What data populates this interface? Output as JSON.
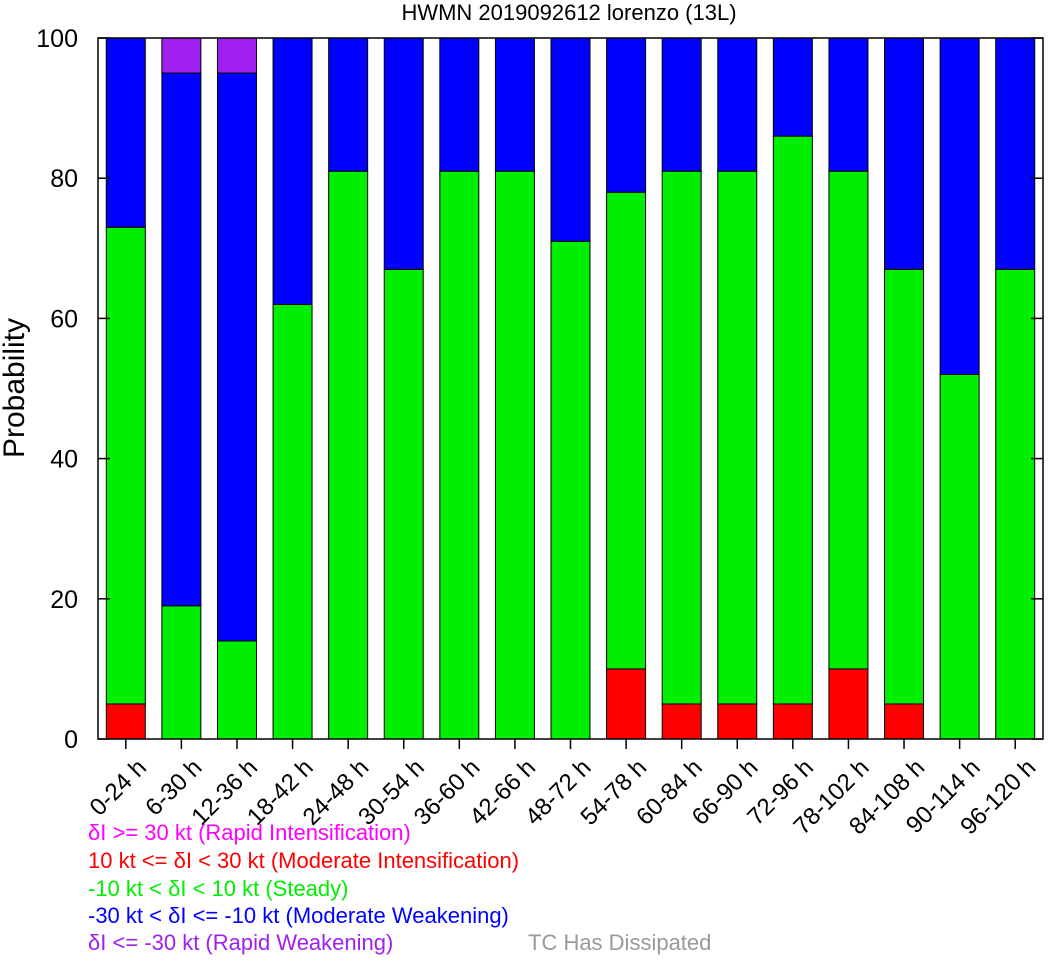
{
  "chart_data": {
    "type": "bar",
    "stacked": true,
    "title": "HWMN 2019092612 lorenzo (13L)",
    "ylabel": "Probability",
    "xlabel": "",
    "ylim": [
      0,
      100
    ],
    "yticks": [
      0,
      20,
      40,
      60,
      80,
      100
    ],
    "grid": false,
    "categories": [
      "0-24 h",
      "6-30 h",
      "12-36 h",
      "18-42 h",
      "24-48 h",
      "30-54 h",
      "36-60 h",
      "42-66 h",
      "48-72 h",
      "54-78 h",
      "60-84 h",
      "66-90 h",
      "72-96 h",
      "78-102 h",
      "84-108 h",
      "90-114 h",
      "96-120 h"
    ],
    "series": [
      {
        "key": "moderate_intensification",
        "color": "#ff0000",
        "values": [
          5,
          0,
          0,
          0,
          0,
          0,
          0,
          0,
          0,
          10,
          5,
          5,
          5,
          10,
          5,
          0,
          0
        ]
      },
      {
        "key": "steady",
        "color": "#00ee00",
        "values": [
          68,
          19,
          14,
          62,
          81,
          67,
          81,
          81,
          71,
          68,
          76,
          76,
          81,
          71,
          62,
          52,
          67
        ]
      },
      {
        "key": "moderate_weakening",
        "color": "#0000ff",
        "values": [
          27,
          76,
          81,
          38,
          19,
          33,
          19,
          19,
          29,
          22,
          19,
          19,
          14,
          19,
          33,
          48,
          33
        ]
      },
      {
        "key": "rapid_weakening",
        "color": "#a020f0",
        "values": [
          0,
          5,
          5,
          0,
          0,
          0,
          0,
          0,
          0,
          0,
          0,
          0,
          0,
          0,
          0,
          0,
          0
        ]
      }
    ]
  },
  "legend": {
    "items": [
      {
        "text": "δI >= 30 kt (Rapid Intensification)",
        "color": "#ff00ff"
      },
      {
        "text": "10 kt <= δI < 30 kt (Moderate Intensification)",
        "color": "#ff0000"
      },
      {
        "text": "-10 kt < δI < 10 kt (Steady)",
        "color": "#00ee00"
      },
      {
        "text": "-30 kt < δI <= -10 kt (Moderate Weakening)",
        "color": "#0000ff"
      },
      {
        "text": "δI <= -30 kt (Rapid Weakening)",
        "color": "#a020f0"
      }
    ],
    "dissipated": {
      "text": "TC Has Dissipated",
      "color": "#999999"
    }
  }
}
